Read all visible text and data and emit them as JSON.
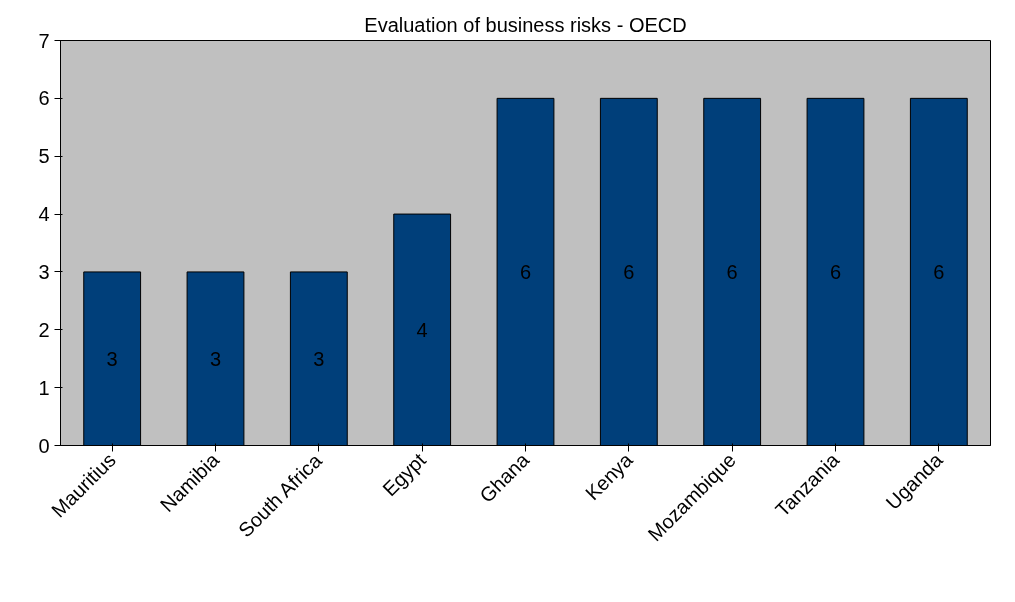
{
  "chart_data": {
    "type": "bar",
    "title": "Evaluation of business risks - OECD",
    "categories": [
      "Mauritius",
      "Namibia",
      "South Africa",
      "Egypt",
      "Ghana",
      "Kenya",
      "Mozambique",
      "Tanzania",
      "Uganda"
    ],
    "values": [
      3,
      3,
      3,
      4,
      6,
      6,
      6,
      6,
      6
    ],
    "color": "#003f7a",
    "ylim": [
      0,
      7
    ],
    "yticks": [
      0,
      1,
      2,
      3,
      4,
      5,
      6,
      7
    ],
    "data_labels": true,
    "grid": false
  }
}
